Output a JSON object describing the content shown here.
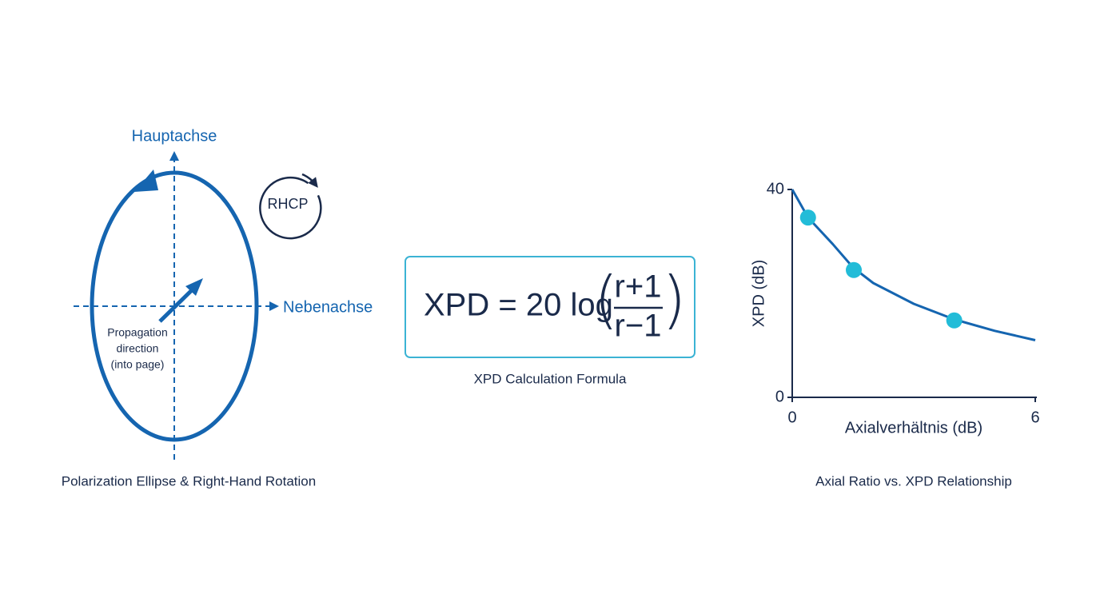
{
  "diagram": {
    "major_axis_label": "Hauptachse",
    "minor_axis_label": "Nebenachse",
    "rotation_label": "RHCP",
    "propagation_label": [
      "Propagation",
      "direction",
      "(into page)"
    ],
    "caption": "Polarization Ellipse & Right-Hand Rotation"
  },
  "formula": {
    "lhs": "XPD = 20 log",
    "numerator": "r+1",
    "denominator": "r−1",
    "caption": "XPD Calculation Formula"
  },
  "chart_data": {
    "type": "line",
    "title": "Axial Ratio vs. XPD Relationship",
    "x_label": "Axialverhältnis (dB)",
    "y_label": "XPD (dB)",
    "xlim": [
      0,
      6
    ],
    "ylim": [
      0,
      40
    ],
    "xticks": [
      0,
      6
    ],
    "yticks": [
      0,
      40
    ],
    "series": [
      {
        "color": "#1565b0",
        "x": [
          0,
          0.39,
          1,
          1.5,
          2,
          3,
          4,
          5,
          6
        ],
        "values": [
          40,
          34.6,
          29.5,
          25,
          22,
          18,
          15,
          12.8,
          11
        ]
      },
      {
        "color": "#22bcd8",
        "markers": true,
        "x": [
          0.39,
          1.52,
          4.0
        ],
        "values": [
          34.6,
          24.5,
          14.8
        ]
      }
    ]
  }
}
